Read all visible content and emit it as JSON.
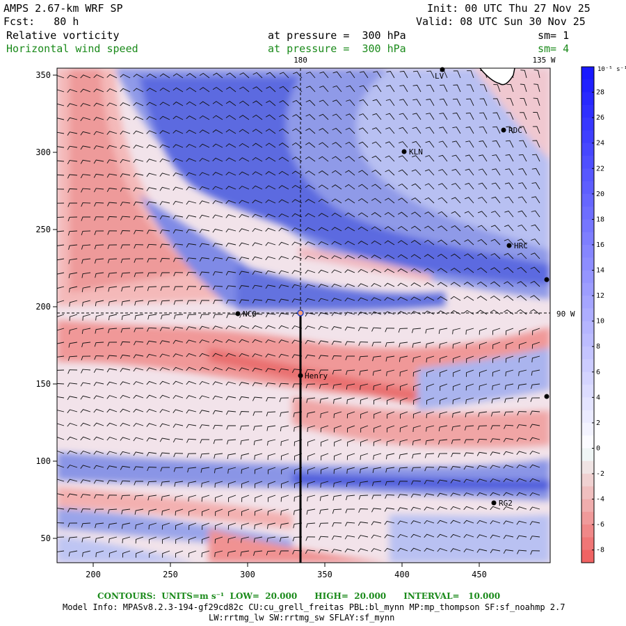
{
  "header": {
    "model_line": "AMPS 2.67-km WRF SP",
    "fcst_line": "Fcst:   80 h",
    "init_line": "Init: 00 UTC Thu 27 Nov 25",
    "valid_line": "Valid: 08 UTC Sun 30 Nov 25",
    "field1": "Relative vorticity",
    "field1_level": "at pressure =  300 hPa",
    "field1_sm": "sm= 1",
    "field2": "Horizontal wind speed",
    "field2_level": "at pressure =  300 hPa",
    "field2_sm": "sm= 4"
  },
  "map": {
    "x_ticks": [
      "200",
      "250",
      "300",
      "350",
      "400",
      "450"
    ],
    "y_ticks": [
      "350",
      "300",
      "250",
      "200",
      "150",
      "100",
      "50"
    ],
    "lon_label_top_1": "180",
    "lon_label_top_2": "135 W",
    "lat_label_right": "90 W",
    "stations": [
      {
        "name": "LV"
      },
      {
        "name": "RDC"
      },
      {
        "name": "KLN"
      },
      {
        "name": "HRC"
      },
      {
        "name": "NCO"
      },
      {
        "name": "Henry"
      },
      {
        "name": "RG2"
      }
    ],
    "colors": {
      "positive_max": "#1515e0",
      "positive_light": "#c8cff5",
      "negative_max": "#e85a5a",
      "negative_light": "#f5c8c8",
      "cross_section_line": "#000000"
    }
  },
  "colorbar": {
    "unit_label": "10⁻⁵ s⁻¹",
    "labels": [
      "28",
      "26",
      "24",
      "22",
      "20",
      "18",
      "16",
      "14",
      "12",
      "10",
      "8",
      "6",
      "4",
      "2",
      "0",
      "-2",
      "-4",
      "-6",
      "-8"
    ]
  },
  "footer": {
    "contours": "CONTOURS:  UNITS=m s⁻¹  LOW=  20.000      HIGH=  20.000      INTERVAL=   10.000",
    "model_info": "Model Info: MPASv8.2.3-194-gf29cd82c CU:cu_grell_freitas PBL:bl_mynn MP:mp_thompson SF:sf_noahmp 2.7",
    "model_info2": "LW:rrtmg_lw SW:rrtmg_sw SFLAY:sf_mynn"
  }
}
